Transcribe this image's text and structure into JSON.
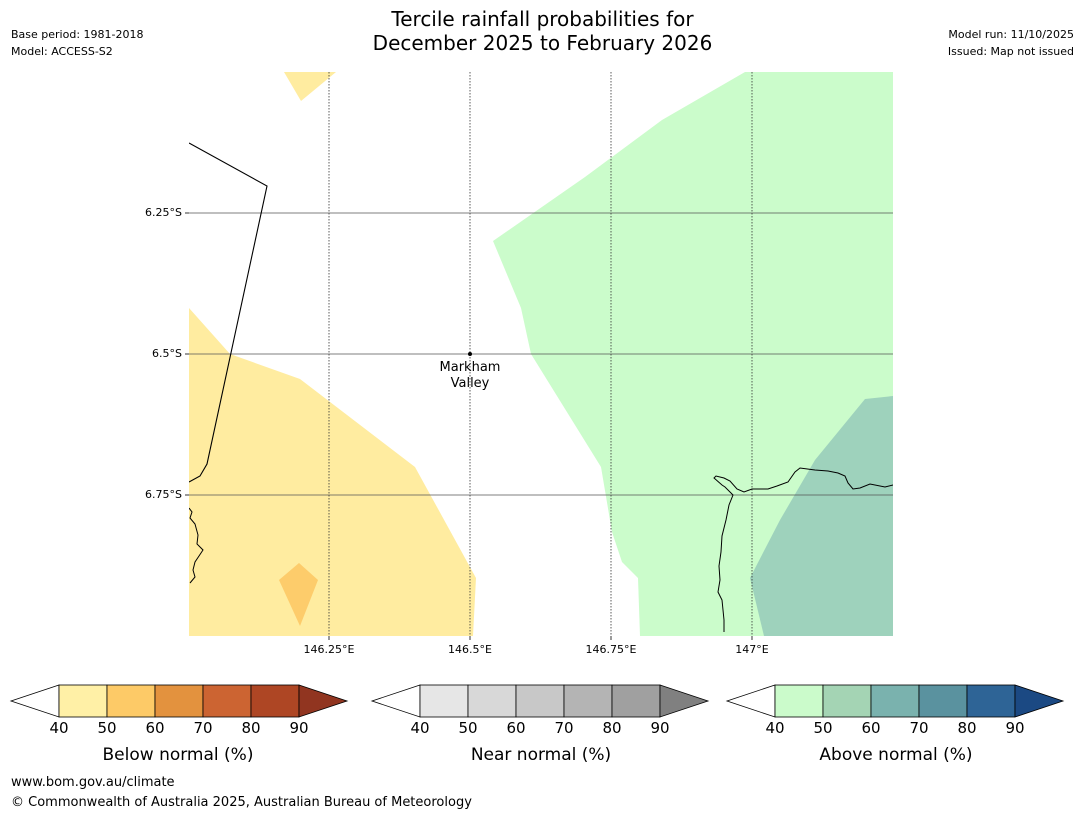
{
  "header": {
    "title_line1": "Tercile rainfall probabilities for",
    "title_line2": "December 2025 to February 2026",
    "base_period": "Base period: 1981-2018",
    "model": "Model: ACCESS-S2",
    "model_run": "Model run: 11/10/2025",
    "issued": "Issued: Map not issued"
  },
  "map": {
    "lat_labels": [
      "6.25°S",
      "6.5°S",
      "6.75°S"
    ],
    "lon_labels": [
      "146.25°E",
      "146.5°E",
      "146.75°E",
      "147°E"
    ],
    "city": {
      "name_line1": "Markham",
      "name_line2": "Valley"
    },
    "region_icons": [
      "below-normal-40-50-region",
      "below-normal-50-60-region",
      "above-normal-40-50-region",
      "above-normal-50-60-region",
      "coastline",
      "border-line"
    ]
  },
  "legend": {
    "tick_values": [
      "40",
      "50",
      "60",
      "70",
      "80",
      "90"
    ],
    "below": {
      "title": "Below normal (%)",
      "colors": [
        "#fff0a6",
        "#fdca67",
        "#e3923e",
        "#cc6432",
        "#ae4624",
        "#913520"
      ]
    },
    "near": {
      "title": "Near normal (%)",
      "colors": [
        "#e6e6e6",
        "#d8d8d8",
        "#c8c8c8",
        "#b4b4b4",
        "#a0a0a0",
        "#808080"
      ]
    },
    "above": {
      "title": "Above normal (%)",
      "colors": [
        "#cbfbcb",
        "#a4d4b4",
        "#7ab2ae",
        "#5a929f",
        "#2e6496",
        "#1b4983"
      ]
    }
  },
  "footer": {
    "url": "www.bom.gov.au/climate",
    "copyright": "© Commonwealth of Australia 2025, Australian Bureau of Meteorology"
  }
}
